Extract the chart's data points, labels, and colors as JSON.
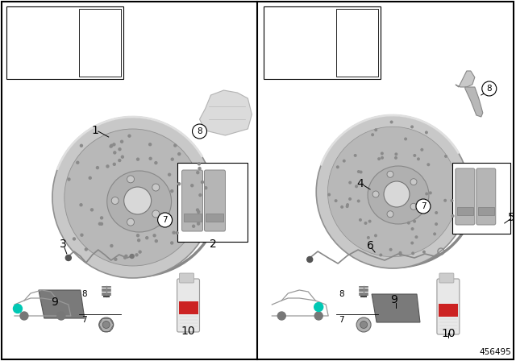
{
  "bg_color": "#ffffff",
  "border_color": "#000000",
  "diagram_id": "456495",
  "teal_color": "#00c8b4"
}
